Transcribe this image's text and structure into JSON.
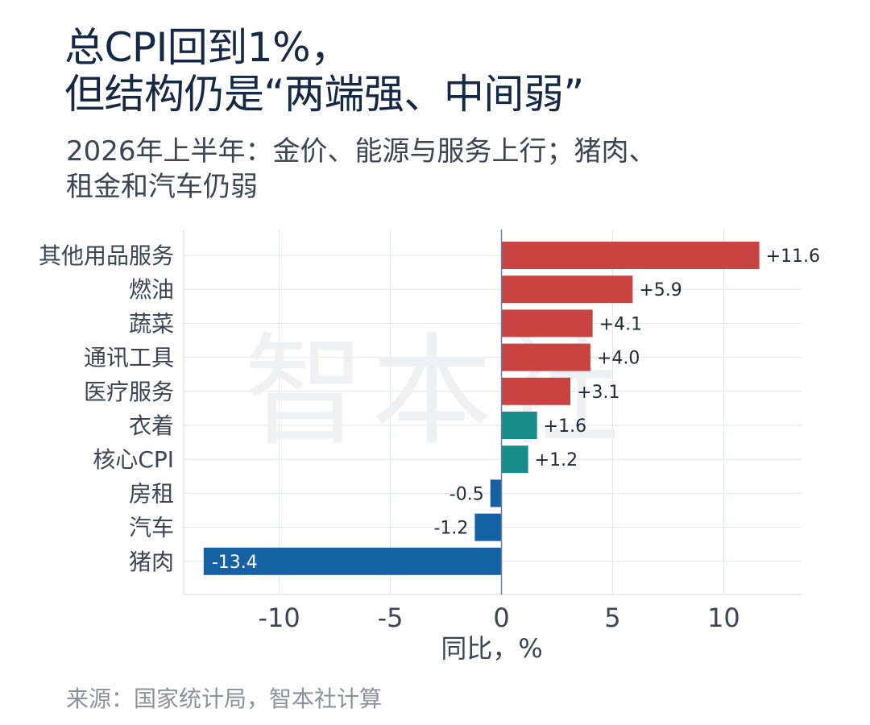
{
  "title": {
    "line1": "总CPI回到1%，",
    "line2": "但结构仍是“两端强、中间弱”"
  },
  "subtitle": {
    "line1": "2026年上半年：金价、能源与服务上行；猪肉、",
    "line2": "租金和汽车仍弱"
  },
  "watermark": "智本社",
  "source": "来源：国家统计局，智本社计算",
  "colors": {
    "strong_up": "#c94441",
    "moderate_up": "#178d8b",
    "down": "#1561a3",
    "axis_text": "#3a4655",
    "grid": "#e3e6ea",
    "zero_line": "#6e7e96"
  },
  "chart_data": {
    "type": "bar",
    "orientation": "horizontal",
    "categories": [
      "其他用品服务",
      "燃油",
      "蔬菜",
      "通讯工具",
      "医疗服务",
      "衣着",
      "核心CPI",
      "房租",
      "汽车",
      "猪肉"
    ],
    "values": [
      11.6,
      5.9,
      4.1,
      4.0,
      3.1,
      1.6,
      1.2,
      -0.5,
      -1.2,
      -13.4
    ],
    "value_labels": [
      "+11.6",
      "+5.9",
      "+4.1",
      "+4.0",
      "+3.1",
      "+1.6",
      "+1.2",
      "-0.5",
      "-1.2",
      "-13.4"
    ],
    "bar_color_groups": [
      "strong_up",
      "strong_up",
      "strong_up",
      "strong_up",
      "strong_up",
      "moderate_up",
      "moderate_up",
      "down",
      "down",
      "down"
    ],
    "xlabel": "同比，%",
    "ylabel": "",
    "xlim": [
      -14.3,
      13.5
    ],
    "xticks": [
      -10,
      -5,
      0,
      5,
      10
    ],
    "xtick_labels": [
      "-10",
      "-5",
      "0",
      "5",
      "10"
    ],
    "grid": true
  }
}
